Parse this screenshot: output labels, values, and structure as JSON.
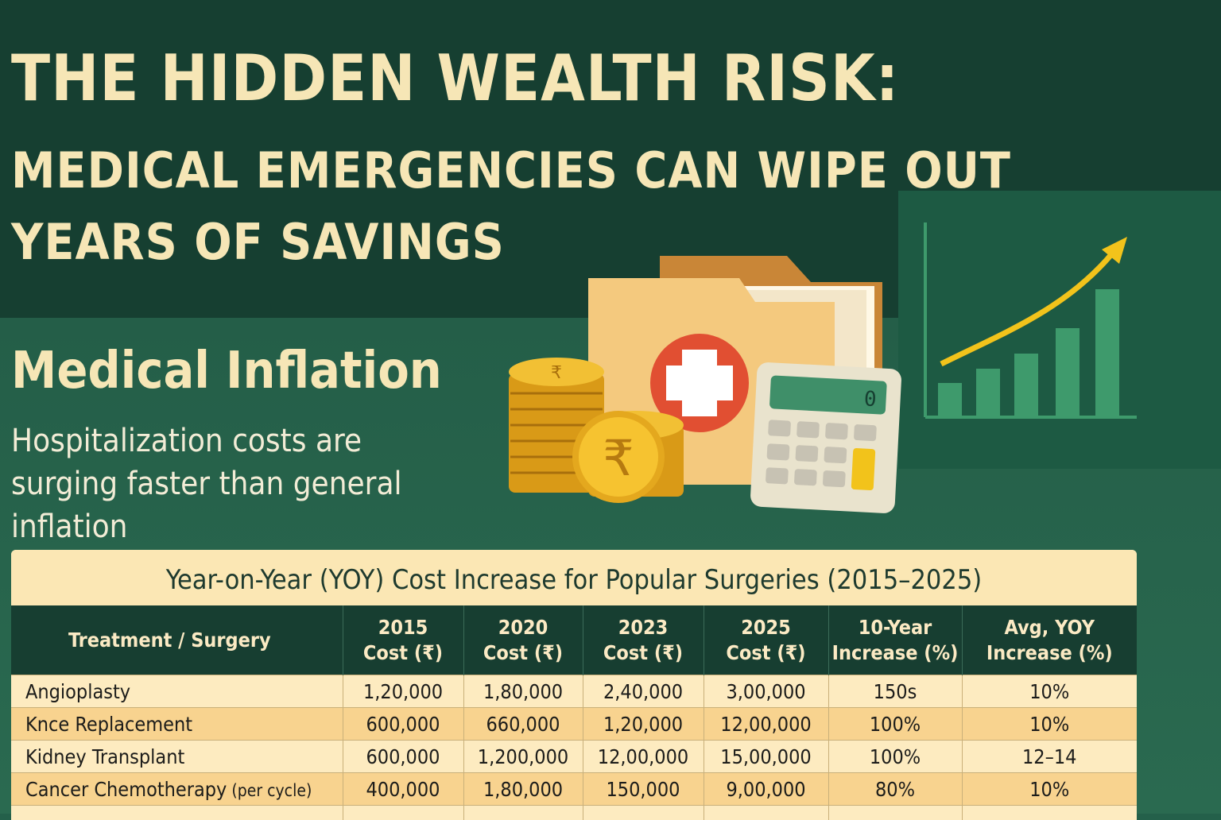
{
  "title": {
    "line1": "THE HIDDEN WEALTH RISK:",
    "line2": "MEDICAL EMERGENCIES CAN WIPE OUT",
    "line3": "YEARS OF SAVINGS"
  },
  "section": {
    "heading": "Medical Inflation",
    "text": "Hospitalization costs are surging faster than general inflation"
  },
  "illustration": {
    "coin_symbol": "₹",
    "calculator_display": "0",
    "icons": [
      "coin-stack-icon",
      "rupee-coin-icon",
      "medical-folder-icon",
      "calculator-icon",
      "rising-bar-chart-icon",
      "trend-arrow-icon"
    ]
  },
  "colors": {
    "top_background": "#163f31",
    "body_background": "#24604a",
    "title_text": "#f6e6b6",
    "table_header": "#173e31",
    "row_light": "#fdebc0",
    "row_dark": "#f8d38f",
    "accent_arrow": "#f2c31b",
    "chart_bars": "#3e9a6c"
  },
  "table": {
    "caption": "Year-on-Year (YOY) Cost Increase for Popular Surgeries (2015–2025)",
    "headers": [
      {
        "line1": "Treatment / Surgery",
        "line2": ""
      },
      {
        "line1": "2015",
        "line2": "Cost (₹)"
      },
      {
        "line1": "2020",
        "line2": "Cost (₹)"
      },
      {
        "line1": "2023",
        "line2": "Cost (₹)"
      },
      {
        "line1": "2025",
        "line2": "Cost (₹)"
      },
      {
        "line1": "10-Year",
        "line2": "Increase (%)"
      },
      {
        "line1": "Avg, YOY",
        "line2": "Increase (%)"
      }
    ],
    "rows": [
      {
        "name": "Angioplasty",
        "note": "",
        "c2015": "1,20,000",
        "c2020": "1,80,000",
        "c2023": "2,40,000",
        "c2025": "3,00,000",
        "ten_year": "150s",
        "avg_yoy": "10%"
      },
      {
        "name": "Knce Replacement",
        "note": "",
        "c2015": "600,000",
        "c2020": "660,000",
        "c2023": "1,20,000",
        "c2025": "12,00,000",
        "ten_year": "100%",
        "avg_yoy": "10%"
      },
      {
        "name": "Kidney Transplant",
        "note": "",
        "c2015": "600,000",
        "c2020": "1,200,000",
        "c2023": "12,00,000",
        "c2025": "15,00,000",
        "ten_year": "100%",
        "avg_yoy": "12–14"
      },
      {
        "name": "Cancer Chemotherapy",
        "note": " (per cycle)",
        "c2015": "400,000",
        "c2020": "1,80,000",
        "c2023": "150,000",
        "c2025": "9,00,000",
        "ten_year": "80%",
        "avg_yoy": "10%"
      }
    ]
  }
}
